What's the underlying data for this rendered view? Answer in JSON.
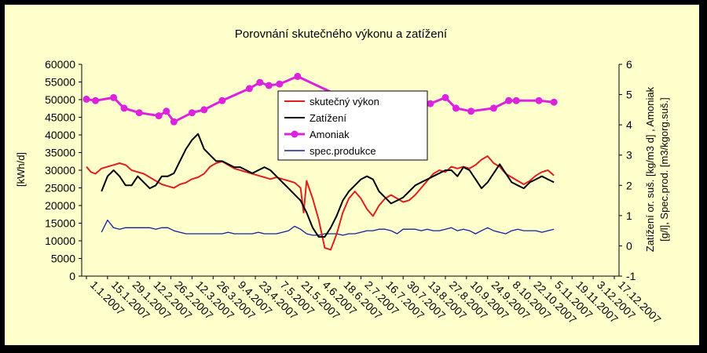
{
  "chart_data": {
    "type": "line",
    "title": "Porovnání skutečného výkonu a zatížení",
    "ylabel": "[kWh/d]",
    "y2label_line1": "Zatížení or. suš. [kg/m3 d] , Amoniak",
    "y2label_line2": "[g/l], Spec.prod. [m3/kgorg.suš.]",
    "ylim": [
      0,
      60000
    ],
    "y2lim": [
      -1,
      6
    ],
    "yticks": [
      "60000",
      "55000",
      "50000",
      "45000",
      "40000",
      "35000",
      "30000",
      "25000",
      "20000",
      "15000",
      "10000",
      "5000",
      "0"
    ],
    "y2ticks": [
      "6",
      "5",
      "4",
      "3",
      "2",
      "1",
      "0",
      "-1"
    ],
    "xticks": [
      "1.1.2007",
      "15.1.2007",
      "29.1.2007",
      "12.2.2007",
      "26.2.2007",
      "12.3.2007",
      "26.3.2007",
      "9.4.2007",
      "23.4.2007",
      "7.5.2007",
      "21.5.2007",
      "4.6.2007",
      "18.6.2007",
      "2.7.2007",
      "16.7.2007",
      "30.7.2007",
      "13.8.2007",
      "27.8.2007",
      "10.9.2007",
      "24.9.2007",
      "8.10.2007",
      "22.10.2007",
      "5.11.2007",
      "19.11.2007",
      "3.12.2007",
      "17.12.2007"
    ],
    "legend_position": "top-center",
    "grid": false,
    "series": [
      {
        "name": "skutečný výkon",
        "color": "#e02020",
        "axis": "left",
        "x": [
          0,
          3,
          6,
          10,
          14,
          18,
          22,
          26,
          30,
          34,
          38,
          42,
          46,
          50,
          54,
          58,
          62,
          66,
          70,
          74,
          78,
          82,
          86,
          90,
          94,
          98,
          102,
          106,
          110,
          114,
          118,
          122,
          126,
          130,
          134,
          138,
          142,
          144,
          146,
          150,
          154,
          158,
          162,
          166,
          170,
          174,
          178,
          182,
          186,
          190,
          194,
          198,
          202,
          206,
          210,
          214,
          218,
          222,
          226,
          230,
          234,
          238,
          242,
          246,
          250,
          254,
          258,
          262,
          266,
          270,
          274,
          278,
          282,
          286,
          290,
          294,
          298,
          302,
          306,
          310
        ],
        "y": [
          31000,
          29500,
          29000,
          30500,
          31000,
          31500,
          32000,
          31500,
          30000,
          29500,
          29000,
          28000,
          27000,
          26000,
          25500,
          25000,
          26000,
          26500,
          27500,
          28000,
          29000,
          31000,
          32000,
          32500,
          31500,
          30500,
          30000,
          29500,
          29000,
          28500,
          28000,
          27500,
          28000,
          27500,
          27000,
          26500,
          25000,
          18000,
          27000,
          22000,
          16000,
          8000,
          7500,
          12000,
          18000,
          22000,
          24000,
          22000,
          19000,
          17000,
          20000,
          22000,
          23000,
          22000,
          21000,
          21500,
          23000,
          25000,
          27000,
          29000,
          30000,
          29500,
          31000,
          30500,
          31000,
          30500,
          31500,
          33000,
          34000,
          32000,
          31000,
          29000,
          28000,
          27000,
          26000,
          27000,
          28500,
          29500,
          30000,
          28500
        ]
      },
      {
        "name": "Zatížení",
        "color": "#000000",
        "axis": "right",
        "x": [
          10,
          14,
          18,
          22,
          26,
          30,
          34,
          38,
          42,
          46,
          50,
          54,
          58,
          62,
          66,
          70,
          74,
          78,
          82,
          86,
          90,
          94,
          98,
          102,
          106,
          110,
          114,
          118,
          122,
          126,
          130,
          134,
          138,
          142,
          146,
          150,
          154,
          158,
          162,
          166,
          170,
          174,
          178,
          182,
          186,
          190,
          194,
          198,
          202,
          206,
          210,
          214,
          218,
          222,
          226,
          230,
          234,
          238,
          242,
          246,
          250,
          254,
          258,
          262,
          266,
          270,
          274,
          278,
          282,
          286,
          290,
          294,
          298,
          302,
          306,
          310
        ],
        "y": [
          1.8,
          2.3,
          2.5,
          2.3,
          2.0,
          2.0,
          2.3,
          2.1,
          1.9,
          2.0,
          2.3,
          2.3,
          2.4,
          2.8,
          3.2,
          3.5,
          3.7,
          3.2,
          3.0,
          2.8,
          2.8,
          2.7,
          2.6,
          2.6,
          2.5,
          2.4,
          2.5,
          2.6,
          2.5,
          2.3,
          2.1,
          1.9,
          1.7,
          1.5,
          1.1,
          0.6,
          0.3,
          0.3,
          0.6,
          1.0,
          1.5,
          1.8,
          2.0,
          2.2,
          2.3,
          2.2,
          1.8,
          1.6,
          1.4,
          1.5,
          1.6,
          1.8,
          2.0,
          2.1,
          2.2,
          2.3,
          2.4,
          2.5,
          2.5,
          2.3,
          2.6,
          2.5,
          2.2,
          1.9,
          2.1,
          2.4,
          2.7,
          2.4,
          2.1,
          2.0,
          1.9,
          2.1,
          2.2,
          2.3,
          2.2,
          2.1
        ]
      },
      {
        "name": "Amoniak",
        "color": "#dd22dd",
        "axis": "right",
        "x": [
          0,
          6,
          18,
          25,
          35,
          48,
          53,
          58,
          70,
          78,
          90,
          108,
          115,
          121,
          128,
          140,
          170,
          190,
          200,
          212,
          218,
          228,
          238,
          245,
          255,
          270,
          280,
          285,
          300,
          310
        ],
        "y": [
          4.85,
          4.8,
          4.9,
          4.55,
          4.4,
          4.3,
          4.45,
          4.1,
          4.4,
          4.5,
          4.8,
          5.2,
          5.4,
          5.3,
          5.35,
          5.6,
          4.9,
          4.75,
          4.8,
          4.5,
          4.7,
          4.7,
          4.9,
          4.55,
          4.45,
          4.55,
          4.8,
          4.8,
          4.8,
          4.75
        ]
      },
      {
        "name": "spec.produkce",
        "color": "#1020a0",
        "axis": "right",
        "x": [
          10,
          14,
          18,
          22,
          26,
          30,
          34,
          38,
          42,
          46,
          50,
          54,
          58,
          62,
          66,
          70,
          74,
          78,
          82,
          86,
          90,
          94,
          98,
          102,
          106,
          110,
          114,
          118,
          122,
          126,
          130,
          134,
          138,
          142,
          146,
          150,
          154,
          158,
          162,
          166,
          170,
          174,
          178,
          182,
          186,
          190,
          194,
          198,
          202,
          206,
          210,
          214,
          218,
          222,
          226,
          230,
          234,
          238,
          242,
          246,
          250,
          254,
          258,
          262,
          266,
          270,
          274,
          278,
          282,
          286,
          290,
          294,
          298,
          302,
          306,
          310
        ],
        "y": [
          0.45,
          0.85,
          0.6,
          0.55,
          0.6,
          0.6,
          0.6,
          0.6,
          0.6,
          0.55,
          0.6,
          0.6,
          0.5,
          0.45,
          0.4,
          0.4,
          0.4,
          0.4,
          0.4,
          0.4,
          0.4,
          0.45,
          0.4,
          0.4,
          0.4,
          0.4,
          0.45,
          0.4,
          0.4,
          0.4,
          0.45,
          0.5,
          0.65,
          0.55,
          0.4,
          0.35,
          0.35,
          0.4,
          0.4,
          0.4,
          0.35,
          0.4,
          0.4,
          0.45,
          0.5,
          0.5,
          0.55,
          0.55,
          0.5,
          0.4,
          0.55,
          0.55,
          0.55,
          0.5,
          0.55,
          0.5,
          0.5,
          0.55,
          0.6,
          0.5,
          0.55,
          0.5,
          0.4,
          0.5,
          0.6,
          0.5,
          0.45,
          0.4,
          0.5,
          0.55,
          0.5,
          0.5,
          0.5,
          0.45,
          0.5,
          0.55
        ]
      }
    ]
  }
}
